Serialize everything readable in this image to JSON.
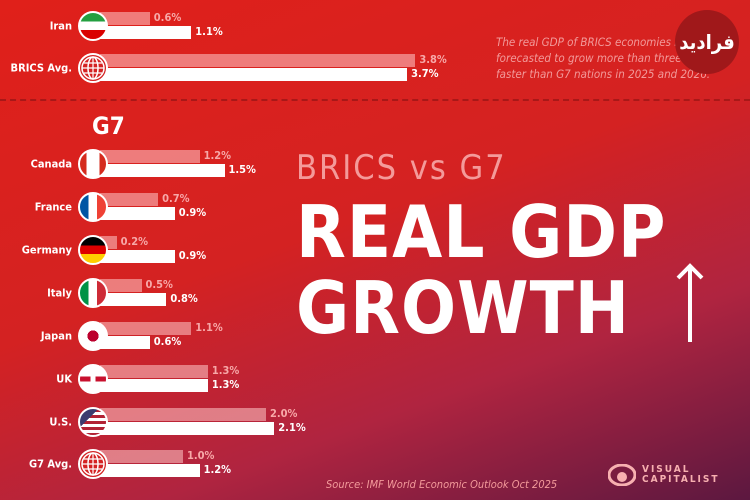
{
  "header": {
    "note": "The real GDP of BRICS economies is forecasted to grow more than three times faster than G7 nations in 2025 and 2026.",
    "subtitle": "BRICS vs G7",
    "title_line1": "REAL GDP",
    "title_line2": "GROWTH",
    "g7_heading": "G7",
    "source": "Source: IMF World Economic Outlook Oct 2025",
    "logo_line1": "VISUAL",
    "logo_line2": "CAPITALIST",
    "watermark": "فرادید"
  },
  "colors": {
    "background": "#d42222",
    "bar_series1": "#f4a3a3",
    "bar_series2": "#ffffff"
  },
  "chart_data": {
    "type": "bar",
    "orientation": "horizontal",
    "title": "BRICS vs G7 Real GDP Growth",
    "categories": [
      "Iran",
      "BRICS Avg.",
      "Canada",
      "France",
      "Germany",
      "Italy",
      "Japan",
      "UK",
      "U.S.",
      "G7 Avg."
    ],
    "icons": [
      "iran-flag",
      "globe",
      "canada-flag",
      "france-flag",
      "germany-flag",
      "italy-flag",
      "japan-flag",
      "uk-flag",
      "us-flag",
      "globe"
    ],
    "series": [
      {
        "values": [
          0.6,
          3.8,
          1.2,
          0.7,
          0.2,
          0.5,
          1.1,
          1.3,
          2.0,
          1.0
        ],
        "labels": [
          "0.6%",
          "3.8%",
          "1.2%",
          "0.7%",
          "0.2%",
          "0.5%",
          "1.1%",
          "1.3%",
          "2.0%",
          "1.0%"
        ]
      },
      {
        "values": [
          1.1,
          3.7,
          1.5,
          0.9,
          0.9,
          0.8,
          0.6,
          1.3,
          2.1,
          1.2
        ],
        "labels": [
          "1.1%",
          "3.7%",
          "1.5%",
          "0.9%",
          "0.9%",
          "0.8%",
          "0.6%",
          "1.3%",
          "2.1%",
          "1.2%"
        ]
      }
    ],
    "unit": "%",
    "grid": false
  }
}
